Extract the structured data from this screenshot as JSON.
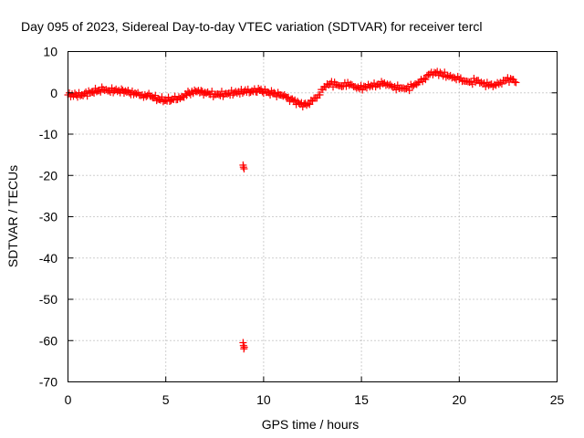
{
  "chart_data": {
    "type": "scatter",
    "title": "Day 095 of 2023, Sidereal Day-to-day VTEC variation (SDTVAR) for receiver tercl",
    "xlabel": "GPS time / hours",
    "ylabel": "SDTVAR / TECUs",
    "xlim": [
      0,
      25
    ],
    "ylim": [
      -70,
      10
    ],
    "xticks": [
      0,
      5,
      10,
      15,
      20,
      25
    ],
    "yticks": [
      -70,
      -60,
      -50,
      -40,
      -30,
      -20,
      -10,
      0,
      10
    ],
    "grid": true,
    "marker": "+",
    "color": "#ff0000",
    "series": [
      {
        "name": "SDTVAR",
        "x": [
          0.0,
          0.7,
          1.2,
          1.8,
          2.1,
          2.6,
          3.0,
          3.5,
          3.8,
          4.2,
          4.6,
          5.0,
          5.4,
          5.8,
          6.2,
          6.6,
          7.0,
          7.5,
          8.0,
          8.5,
          9.0,
          9.4,
          9.8,
          10.2,
          10.6,
          11.0,
          11.4,
          11.8,
          12.2,
          12.5,
          12.8,
          13.1,
          13.4,
          13.7,
          14.0,
          14.3,
          14.6,
          14.9,
          15.2,
          15.5,
          15.8,
          16.1,
          16.4,
          16.7,
          17.0,
          17.3,
          17.6,
          17.9,
          18.2,
          18.5,
          18.8,
          19.1,
          19.4,
          19.7,
          20.0,
          20.3,
          20.6,
          20.9,
          21.2,
          21.5,
          21.8,
          22.1,
          22.4,
          22.7,
          22.9
        ],
        "y": [
          -0.5,
          -0.5,
          0.2,
          0.8,
          0.5,
          0.6,
          0.2,
          -0.3,
          -0.5,
          -0.8,
          -1.5,
          -1.8,
          -1.6,
          -1.0,
          0.0,
          0.3,
          0.1,
          -0.4,
          -0.3,
          0.0,
          0.3,
          0.5,
          0.6,
          0.2,
          -0.2,
          -0.8,
          -1.5,
          -2.5,
          -3.0,
          -2.0,
          -0.5,
          1.5,
          2.2,
          2.0,
          1.5,
          2.5,
          1.5,
          1.0,
          1.5,
          1.8,
          2.0,
          2.2,
          1.8,
          1.5,
          1.2,
          1.0,
          1.5,
          2.5,
          3.5,
          4.5,
          4.8,
          4.6,
          4.2,
          3.8,
          3.2,
          2.8,
          2.7,
          3.0,
          2.2,
          1.8,
          2.0,
          2.5,
          3.0,
          3.2,
          2.5
        ]
      },
      {
        "name": "outliers",
        "x": [
          8.95,
          8.97,
          9.0,
          8.95,
          8.97,
          8.99,
          9.01
        ],
        "y": [
          -17.5,
          -18.0,
          -18.4,
          -60.5,
          -61.2,
          -62.0,
          -61.6
        ]
      }
    ]
  }
}
